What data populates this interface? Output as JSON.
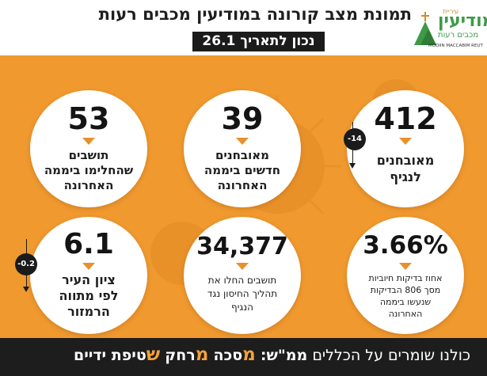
{
  "header": {
    "title": "תמונת מצב קורונה במודיעין מכבים רעות",
    "date_badge": "נכון לתאריך 26.1"
  },
  "logo": {
    "top_small": "עיריית",
    "main": "מודיעין",
    "sub": "מכבים רעות",
    "english": "MODIIN MACCABIM REUT"
  },
  "stats": {
    "sick": {
      "value": "412",
      "label_lines": [
        "מאובחנים",
        "לנגיף"
      ],
      "delta": "-14"
    },
    "new_cases": {
      "value": "39",
      "label_lines": [
        "מאובחנים",
        "חדשים ביממה",
        "האחרונה"
      ]
    },
    "recovered": {
      "value": "53",
      "label_lines": [
        "תושבים",
        "שהחלימו ביממה",
        "האחרונה"
      ]
    },
    "positive_rate": {
      "value": "3.66%",
      "label_lines": [
        "אחוז בדיקות חיוביות",
        "מסך 806 הבדיקות",
        "שנעשו ביממה",
        "האחרונה"
      ]
    },
    "vaccinated": {
      "value": "34,377",
      "label_lines": [
        "תושבים החלו את",
        "תהליך החיסון נגד",
        "הנגיף"
      ]
    },
    "city_score": {
      "value": "6.1",
      "label_lines": [
        "ציון העיר",
        "לפי מתווה",
        "הרמזור"
      ],
      "delta": "-0.2"
    }
  },
  "footer": {
    "prefix": "כולנו שומרים על הכללים",
    "mem_label": "ממ\"ש:",
    "item1_letter": "מ",
    "item1_rest": "סכה",
    "item2_letter": "מ",
    "item2_rest": "רחק",
    "item3_letter": "ש",
    "item3_rest": "טיפת ידיים"
  },
  "colors": {
    "panel": "#f0992f",
    "accent": "#f4a238",
    "dark": "#1b1b1b",
    "logo_green": "#3e9a46"
  }
}
